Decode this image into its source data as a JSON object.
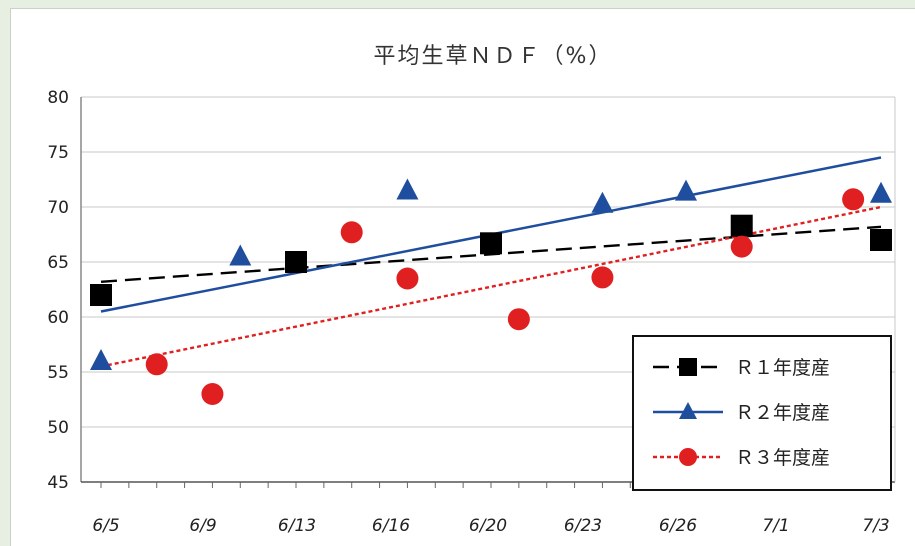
{
  "chart_data": {
    "type": "scatter",
    "title": "平均生草ＮＤＦ（%）",
    "xlabel": "",
    "ylabel": "",
    "ylim": [
      45,
      80
    ],
    "yticks": [
      80,
      75,
      70,
      65,
      60,
      55,
      50,
      45
    ],
    "xlim": [
      0,
      28
    ],
    "x_tick_labels": [
      "6/5",
      "6/9",
      "6/13",
      "6/16",
      "6/20",
      "6/23",
      "6/26",
      "7/1",
      "7/3"
    ],
    "grid": true,
    "legend_position": "bottom-right",
    "series": [
      {
        "name": "Ｒ１年度産",
        "marker": "square",
        "color": "#000000",
        "line_style": "dashed",
        "points": [
          {
            "x": "6/5",
            "y": 62.0
          },
          {
            "x": "6/12",
            "y": 65.0
          },
          {
            "x": "6/19",
            "y": 66.7
          },
          {
            "x": "6/28",
            "y": 68.3
          },
          {
            "x": "7/3",
            "y": 67.0
          }
        ],
        "trend": [
          63.2,
          68.2
        ]
      },
      {
        "name": "Ｒ２年度産",
        "marker": "triangle",
        "color": "#1f4e9e",
        "line_style": "solid",
        "points": [
          {
            "x": "6/5",
            "y": 56.0
          },
          {
            "x": "6/10",
            "y": 65.5
          },
          {
            "x": "6/16",
            "y": 71.5
          },
          {
            "x": "6/23",
            "y": 70.3
          },
          {
            "x": "6/26",
            "y": 71.4
          },
          {
            "x": "7/3",
            "y": 71.2
          }
        ],
        "trend": [
          60.5,
          74.5
        ]
      },
      {
        "name": "Ｒ３年度産",
        "marker": "circle",
        "color": "#e02020",
        "line_style": "dotted",
        "points": [
          {
            "x": "6/7",
            "y": 55.7
          },
          {
            "x": "6/9",
            "y": 53.0
          },
          {
            "x": "6/14",
            "y": 67.7
          },
          {
            "x": "6/16",
            "y": 63.5
          },
          {
            "x": "6/20",
            "y": 59.8
          },
          {
            "x": "6/23",
            "y": 63.6
          },
          {
            "x": "6/28",
            "y": 66.4
          },
          {
            "x": "7/2",
            "y": 70.7
          }
        ],
        "trend": [
          55.5,
          70.0
        ]
      }
    ]
  }
}
